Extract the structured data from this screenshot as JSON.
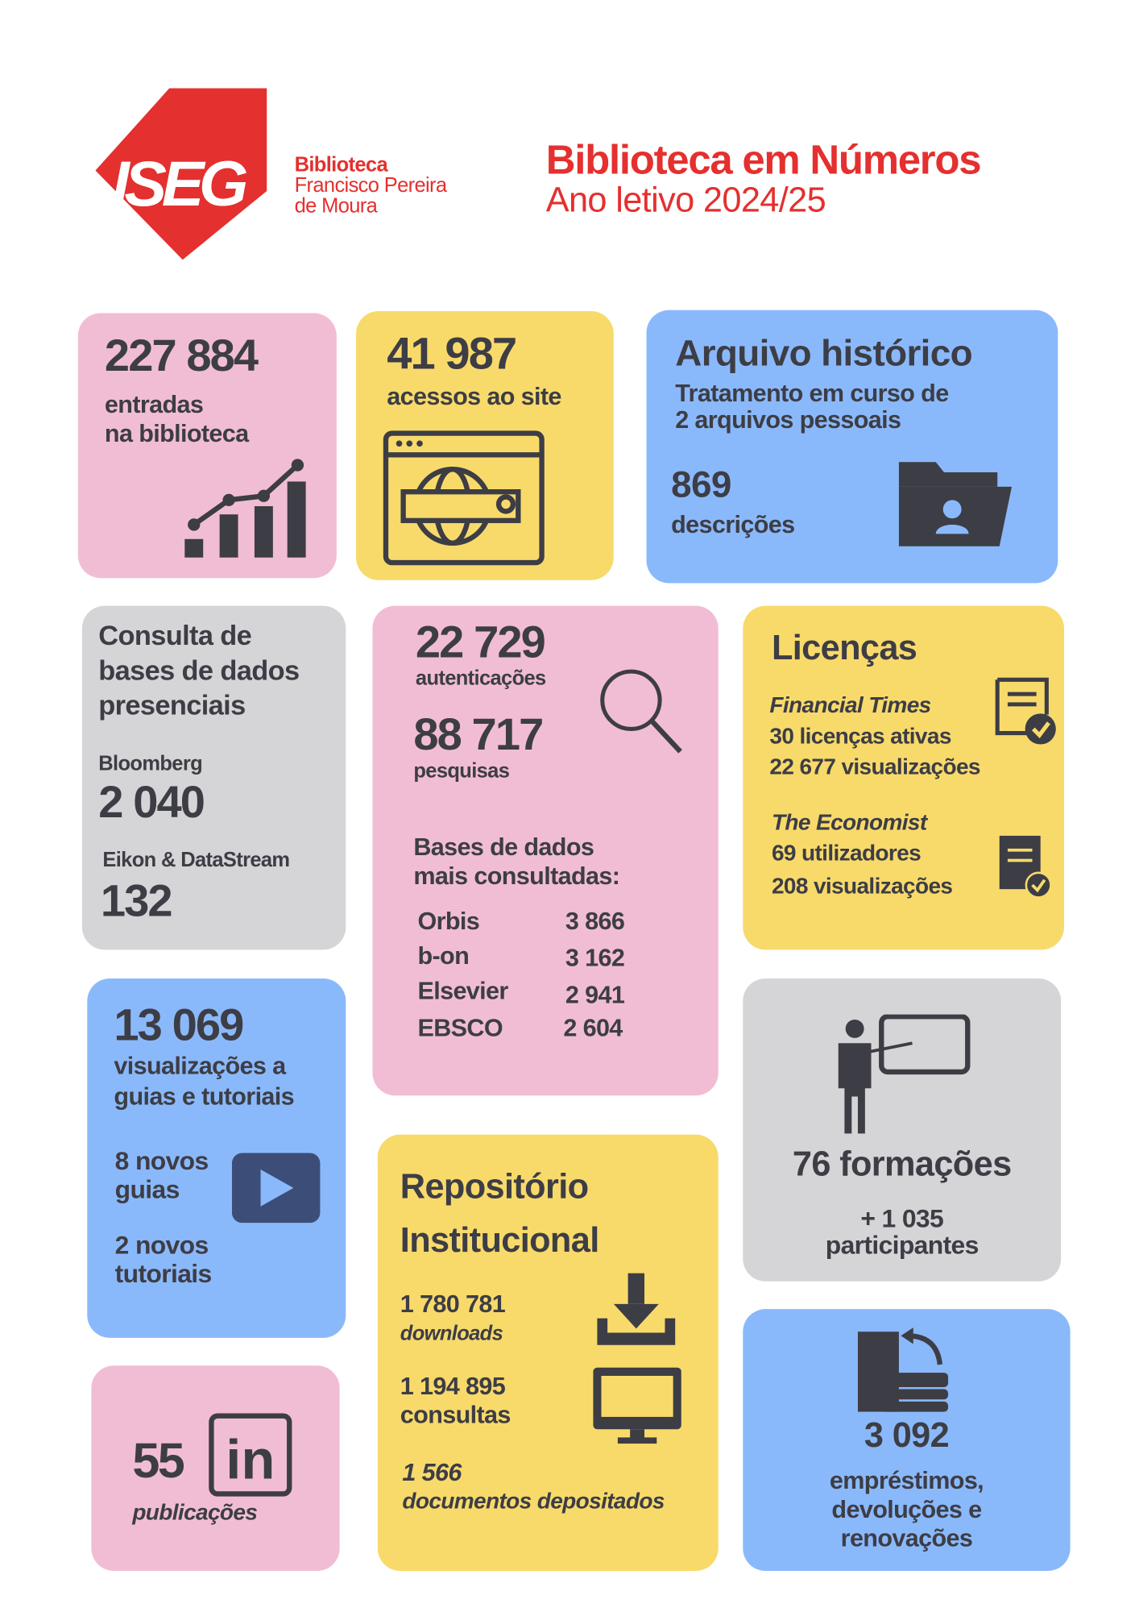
{
  "header": {
    "logo": "ISEG",
    "library": [
      "Biblioteca",
      "Francisco Pereira",
      "de Moura"
    ],
    "title": "Biblioteca em Números",
    "subtitle": "Ano letivo 2024/25"
  },
  "entries": {
    "value": "227 884",
    "label": [
      "entradas",
      "na biblioteca"
    ]
  },
  "site": {
    "value": "41 987",
    "label": "acessos ao site"
  },
  "archive": {
    "title": "Arquivo histórico",
    "text": [
      "Tratamento em curso de",
      "2 arquivos pessoais"
    ],
    "value": "869",
    "label": "descrições"
  },
  "onsite": {
    "title": [
      "Consulta de",
      "bases de dados",
      "presenciais"
    ],
    "items": [
      {
        "name": "Bloomberg",
        "value": "2 040"
      },
      {
        "name": "Eikon & DataStream",
        "value": "132"
      }
    ]
  },
  "searches": {
    "auth": {
      "value": "22 729",
      "label": "autenticações"
    },
    "queries": {
      "value": "88 717",
      "label": "pesquisas"
    },
    "top_title": [
      "Bases de dados",
      "mais consultadas:"
    ],
    "top": [
      [
        "Orbis",
        "3 866"
      ],
      [
        "b-on",
        "3 162"
      ],
      [
        "Elsevier",
        "2 941"
      ],
      [
        "EBSCO",
        "2 604"
      ]
    ]
  },
  "licences": {
    "title": "Licenças",
    "items": [
      {
        "name": "Financial Times",
        "lines": [
          "30 licenças ativas",
          "22 677 visualizações"
        ]
      },
      {
        "name": "The Economist",
        "lines": [
          "69 utilizadores",
          "208 visualizações"
        ]
      }
    ]
  },
  "guides": {
    "value": "13 069",
    "label": [
      "visualizações a",
      "guias e tutoriais"
    ],
    "new": [
      [
        "8 novos",
        "guias"
      ],
      [
        "2 novos",
        "tutoriais"
      ]
    ]
  },
  "repository": {
    "title": [
      "Repositório",
      "Institucional"
    ],
    "items": [
      {
        "value": "1 780 781",
        "label": "downloads"
      },
      {
        "value": "1 194 895",
        "label": "consultas"
      },
      {
        "value": "1 566",
        "label": "documentos depositados"
      }
    ]
  },
  "training": {
    "value": "76 formações",
    "participants": [
      "+ 1 035",
      "participantes"
    ]
  },
  "linkedin": {
    "value": "55",
    "icon": "in",
    "label": "publicações"
  },
  "loans": {
    "value": "3 092",
    "label": [
      "empréstimos,",
      "devoluções e",
      "renovações"
    ]
  }
}
